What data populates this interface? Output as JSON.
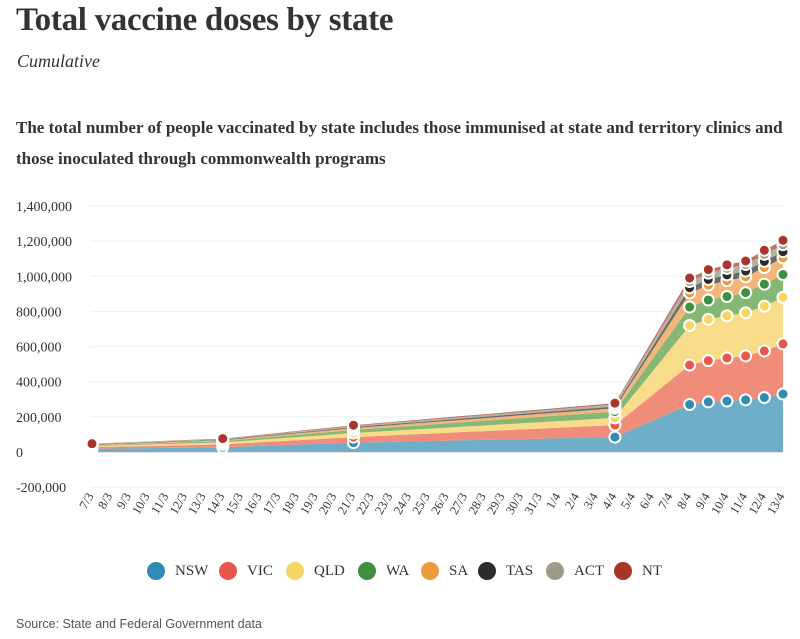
{
  "header": {
    "title": "Total vaccine doses by state",
    "subtitle": "Cumulative",
    "description": "The total number of people vaccinated by state includes those immunised at state and territory clinics and those inoculated through commonwealth programs"
  },
  "footer": {
    "source": "Source: State and Federal Government data"
  },
  "chart_data": {
    "type": "area",
    "stacked": true,
    "categories": [
      "7/3",
      "8/3",
      "9/3",
      "10/3",
      "11/3",
      "12/3",
      "13/3",
      "14/3",
      "15/3",
      "16/3",
      "17/3",
      "18/3",
      "19/3",
      "20/3",
      "21/3",
      "22/3",
      "23/3",
      "24/3",
      "25/3",
      "26/3",
      "27/3",
      "28/3",
      "29/3",
      "30/3",
      "31/3",
      "1/4",
      "2/4",
      "3/4",
      "4/4",
      "5/4",
      "6/4",
      "7/4",
      "8/4",
      "9/4",
      "10/4",
      "11/4",
      "12/4",
      "13/4"
    ],
    "y_ticks": [
      "1,400,000",
      "1,200,000",
      "1,000,000",
      "800,000",
      "600,000",
      "400,000",
      "200,000",
      "0",
      "-200,000"
    ],
    "ylim": [
      -200000,
      1400000
    ],
    "legend_position": "bottom",
    "marker_days": [
      "7/3",
      "14/3",
      "21/3",
      "4/4",
      "8/4",
      "9/4",
      "10/4",
      "11/4",
      "12/4",
      "13/4"
    ],
    "series": [
      {
        "name": "NSW",
        "color": "#2f8bb3",
        "area_color": "#6eaec9",
        "values": [
          18000,
          19333,
          20667,
          22000,
          23333,
          24667,
          26000,
          27333,
          31000,
          34667,
          38333,
          42000,
          45667,
          49333,
          53000,
          55286,
          57571,
          59857,
          62143,
          64429,
          66714,
          69000,
          71286,
          73571,
          75857,
          78143,
          80429,
          82714,
          85000,
          null,
          null,
          null,
          270000,
          285000,
          290000,
          297000,
          310000,
          330000
        ]
      },
      {
        "name": "VIC",
        "color": "#e8584a",
        "area_color": "#ef8c7a",
        "values": [
          9000,
          10000,
          11000,
          12000,
          13000,
          14000,
          15000,
          16000,
          18286,
          20571,
          22857,
          25143,
          27429,
          29714,
          32000,
          34571,
          37143,
          39714,
          42286,
          44857,
          47429,
          50000,
          52571,
          55143,
          57714,
          60286,
          62857,
          65429,
          68000,
          null,
          null,
          null,
          225000,
          235000,
          245000,
          250000,
          265000,
          285000
        ]
      },
      {
        "name": "QLD",
        "color": "#f7d563",
        "area_color": "#f9dc8a",
        "values": [
          7000,
          7571,
          8143,
          8714,
          9286,
          9857,
          10429,
          11000,
          12714,
          14429,
          16143,
          17857,
          19571,
          21286,
          23000,
          24286,
          25571,
          26857,
          28143,
          29429,
          30714,
          32000,
          33286,
          34571,
          35857,
          37143,
          38429,
          39714,
          41000,
          null,
          null,
          null,
          225000,
          235000,
          240000,
          245000,
          255000,
          265000
        ]
      },
      {
        "name": "WA",
        "color": "#3e8f3e",
        "area_color": "#84b874",
        "values": [
          4000,
          4429,
          4857,
          5286,
          5714,
          6143,
          6571,
          7000,
          8429,
          9857,
          11286,
          12714,
          14143,
          15571,
          17000,
          18357,
          19714,
          21071,
          22429,
          23786,
          25143,
          26500,
          27857,
          29214,
          30571,
          31929,
          33286,
          34643,
          36000,
          null,
          null,
          null,
          105000,
          110000,
          110000,
          115000,
          125000,
          130000
        ]
      },
      {
        "name": "SA",
        "color": "#ee9a3c",
        "area_color": "#f2b57a",
        "values": [
          3000,
          3286,
          3571,
          3857,
          4143,
          4429,
          4714,
          5000,
          5857,
          6714,
          7571,
          8429,
          9286,
          10143,
          11000,
          11571,
          12143,
          12714,
          13286,
          13857,
          14429,
          15000,
          15571,
          16143,
          16714,
          17286,
          17857,
          18429,
          19000,
          null,
          null,
          null,
          80000,
          85000,
          90000,
          90000,
          95000,
          95000
        ]
      },
      {
        "name": "TAS",
        "color": "#2b2b2b",
        "area_color": "#6a6a6a",
        "values": [
          2500,
          2643,
          2786,
          2929,
          3071,
          3214,
          3357,
          3500,
          3857,
          4214,
          4571,
          4929,
          5286,
          5643,
          6000,
          6286,
          6571,
          6857,
          7143,
          7429,
          7714,
          8000,
          8286,
          8571,
          8857,
          9143,
          9429,
          9714,
          10000,
          null,
          null,
          null,
          30000,
          32000,
          33000,
          33000,
          35000,
          35000
        ]
      },
      {
        "name": "ACT",
        "color": "#9b9b87",
        "area_color": "#b2b2a0",
        "values": [
          2500,
          2714,
          2929,
          3143,
          3357,
          3571,
          3786,
          4000,
          4357,
          4714,
          5071,
          5429,
          5786,
          6143,
          6500,
          6893,
          7286,
          7679,
          8071,
          8464,
          8857,
          9250,
          9643,
          10036,
          10429,
          10821,
          11214,
          11607,
          12000,
          null,
          null,
          null,
          35000,
          36000,
          37000,
          37000,
          40000,
          40000
        ]
      },
      {
        "name": "NT",
        "color": "#a8352a",
        "area_color": "#c46d63",
        "values": [
          1500,
          1643,
          1786,
          1929,
          2071,
          2214,
          2357,
          2500,
          2714,
          2929,
          3143,
          3357,
          3571,
          3786,
          4000,
          4214,
          4429,
          4643,
          4857,
          5071,
          5286,
          5500,
          5714,
          5929,
          6143,
          6357,
          6571,
          6786,
          7000,
          null,
          null,
          null,
          20000,
          20000,
          20000,
          20000,
          23000,
          25000
        ]
      }
    ]
  }
}
